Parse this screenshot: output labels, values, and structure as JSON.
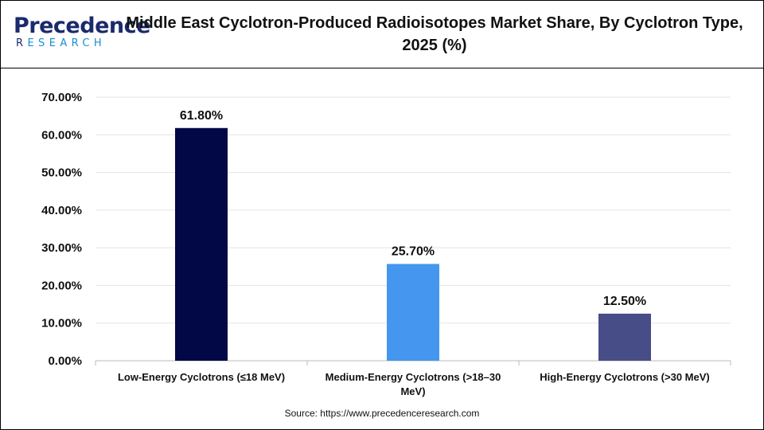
{
  "logo": {
    "brand_first": "P",
    "brand_rest": "recedence",
    "sub_first": "R",
    "sub_rest": "ESEARCH"
  },
  "title": "Middle East Cyclotron-Produced Radioisotopes Market Share, By Cyclotron Type, 2025 (%)",
  "source": "Source: https://www.precedenceresearch.com",
  "colors": {
    "bar1": "#020745",
    "bar2": "#4596ee",
    "bar3": "#474d87",
    "grid": "#e3e3e3",
    "axis": "#bbbbbb"
  },
  "chart_data": {
    "type": "bar",
    "title": "Middle East Cyclotron-Produced Radioisotopes Market Share, By Cyclotron Type, 2025 (%)",
    "categories": [
      "Low-Energy Cyclotrons (≤18 MeV)",
      "Medium-Energy Cyclotrons (>18–30 MeV)",
      "High-Energy Cyclotrons (>30 MeV)"
    ],
    "category_lines": [
      [
        "Low-Energy Cyclotrons (≤18 MeV)"
      ],
      [
        "Medium-Energy Cyclotrons (>18–30",
        "MeV)"
      ],
      [
        "High-Energy Cyclotrons (>30 MeV)"
      ]
    ],
    "values": [
      61.8,
      25.7,
      12.5
    ],
    "data_labels": [
      "61.80%",
      "25.70%",
      "12.50%"
    ],
    "yticks": [
      0,
      10,
      20,
      30,
      40,
      50,
      60,
      70
    ],
    "ytick_labels": [
      "0.00%",
      "10.00%",
      "20.00%",
      "30.00%",
      "40.00%",
      "50.00%",
      "60.00%",
      "70.00%"
    ],
    "ylim": [
      0,
      70
    ],
    "xlabel": "",
    "ylabel": "",
    "grid": true,
    "legend": "none"
  }
}
